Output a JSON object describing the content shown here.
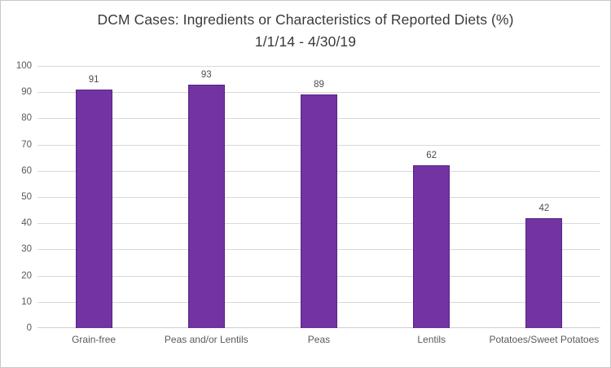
{
  "window": {
    "background": "#ffffff",
    "border_color": "#c9c9c9"
  },
  "chart_data": {
    "type": "bar",
    "title": "DCM Cases: Ingredients or Characteristics of Reported Diets (%)",
    "subtitle": "1/1/14 - 4/30/19",
    "categories": [
      "Grain-free",
      "Peas and/or Lentils",
      "Peas",
      "Lentils",
      "Potatoes/Sweet Potatoes"
    ],
    "values": [
      91,
      93,
      89,
      62,
      42
    ],
    "data_labels": [
      "91",
      "93",
      "89",
      "62",
      "42"
    ],
    "xlabel": "",
    "ylabel": "",
    "ylim": [
      0,
      100
    ],
    "ytick_interval": 10,
    "yticks": [
      0,
      10,
      20,
      30,
      40,
      50,
      60,
      70,
      80,
      90,
      100
    ],
    "grid": true,
    "legend": "none",
    "colors": {
      "bar_fill": "#7233a3",
      "bar_border": "#5a2385",
      "gridline": "#d9d9d9",
      "axis_line": "#cfcfcf",
      "axis_label": "#595959",
      "data_label": "#4d4d4d",
      "title": "#3a3a3a"
    }
  }
}
